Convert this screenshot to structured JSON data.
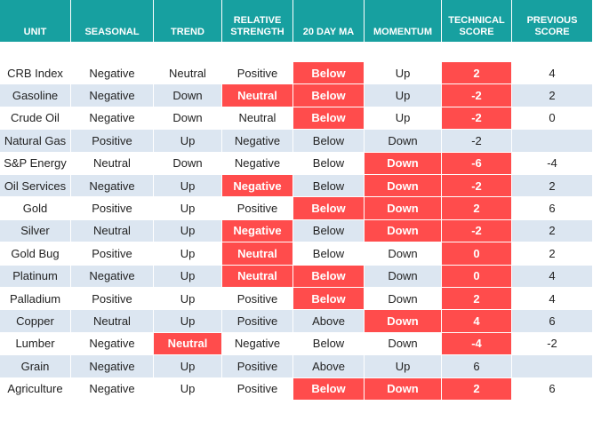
{
  "table": {
    "header": [
      "UNIT",
      "SEASONAL",
      "TREND",
      "RELATIVE STRENGTH",
      "20 DAY MA",
      "MOMENTUM",
      "TECHNICAL SCORE",
      "PREVIOUS SCORE"
    ],
    "highlight_color": "#ff4c4c",
    "rows": [
      {
        "cells": [
          "CRB Index",
          "Negative",
          "Neutral",
          "Positive",
          "Below",
          "Up",
          "2",
          "4"
        ],
        "highlight": [
          4,
          6
        ]
      },
      {
        "cells": [
          "Gasoline",
          "Negative",
          "Down",
          "Neutral",
          "Below",
          "Up",
          "-2",
          "2"
        ],
        "highlight": [
          3,
          4,
          6
        ]
      },
      {
        "cells": [
          "Crude Oil",
          "Negative",
          "Down",
          "Neutral",
          "Below",
          "Up",
          "-2",
          "0"
        ],
        "highlight": [
          4,
          6
        ]
      },
      {
        "cells": [
          "Natural Gas",
          "Positive",
          "Up",
          "Negative",
          "Below",
          "Down",
          "-2",
          null
        ],
        "highlight": []
      },
      {
        "cells": [
          "S&P Energy",
          "Neutral",
          "Down",
          "Negative",
          "Below",
          "Down",
          "-6",
          "-4"
        ],
        "highlight": [
          5,
          6
        ]
      },
      {
        "cells": [
          "Oil Services",
          "Negative",
          "Up",
          "Negative",
          "Below",
          "Down",
          "-2",
          "2"
        ],
        "highlight": [
          3,
          5,
          6
        ]
      },
      {
        "cells": [
          "Gold",
          "Positive",
          "Up",
          "Positive",
          "Below",
          "Down",
          "2",
          "6"
        ],
        "highlight": [
          4,
          5,
          6
        ]
      },
      {
        "cells": [
          "Silver",
          "Neutral",
          "Up",
          "Negative",
          "Below",
          "Down",
          "-2",
          "2"
        ],
        "highlight": [
          3,
          5,
          6
        ]
      },
      {
        "cells": [
          "Gold Bug",
          "Positive",
          "Up",
          "Neutral",
          "Below",
          "Down",
          "0",
          "2"
        ],
        "highlight": [
          3,
          6
        ]
      },
      {
        "cells": [
          "Platinum",
          "Negative",
          "Up",
          "Neutral",
          "Below",
          "Down",
          "0",
          "4"
        ],
        "highlight": [
          3,
          4,
          6
        ]
      },
      {
        "cells": [
          "Palladium",
          "Positive",
          "Up",
          "Positive",
          "Below",
          "Down",
          "2",
          "4"
        ],
        "highlight": [
          4,
          6
        ]
      },
      {
        "cells": [
          "Copper",
          "Neutral",
          "Up",
          "Positive",
          "Above",
          "Down",
          "4",
          "6"
        ],
        "highlight": [
          5,
          6
        ]
      },
      {
        "cells": [
          "Lumber",
          "Negative",
          "Neutral",
          "Negative",
          "Below",
          "Down",
          "-4",
          "-2"
        ],
        "highlight": [
          2,
          6
        ]
      },
      {
        "cells": [
          "Grain",
          "Negative",
          "Up",
          "Positive",
          "Above",
          "Up",
          "6",
          null
        ],
        "highlight": []
      },
      {
        "cells": [
          "Agriculture",
          "Negative",
          "Up",
          "Positive",
          "Below",
          "Down",
          "2",
          "6"
        ],
        "highlight": [
          4,
          5,
          6
        ]
      }
    ]
  }
}
